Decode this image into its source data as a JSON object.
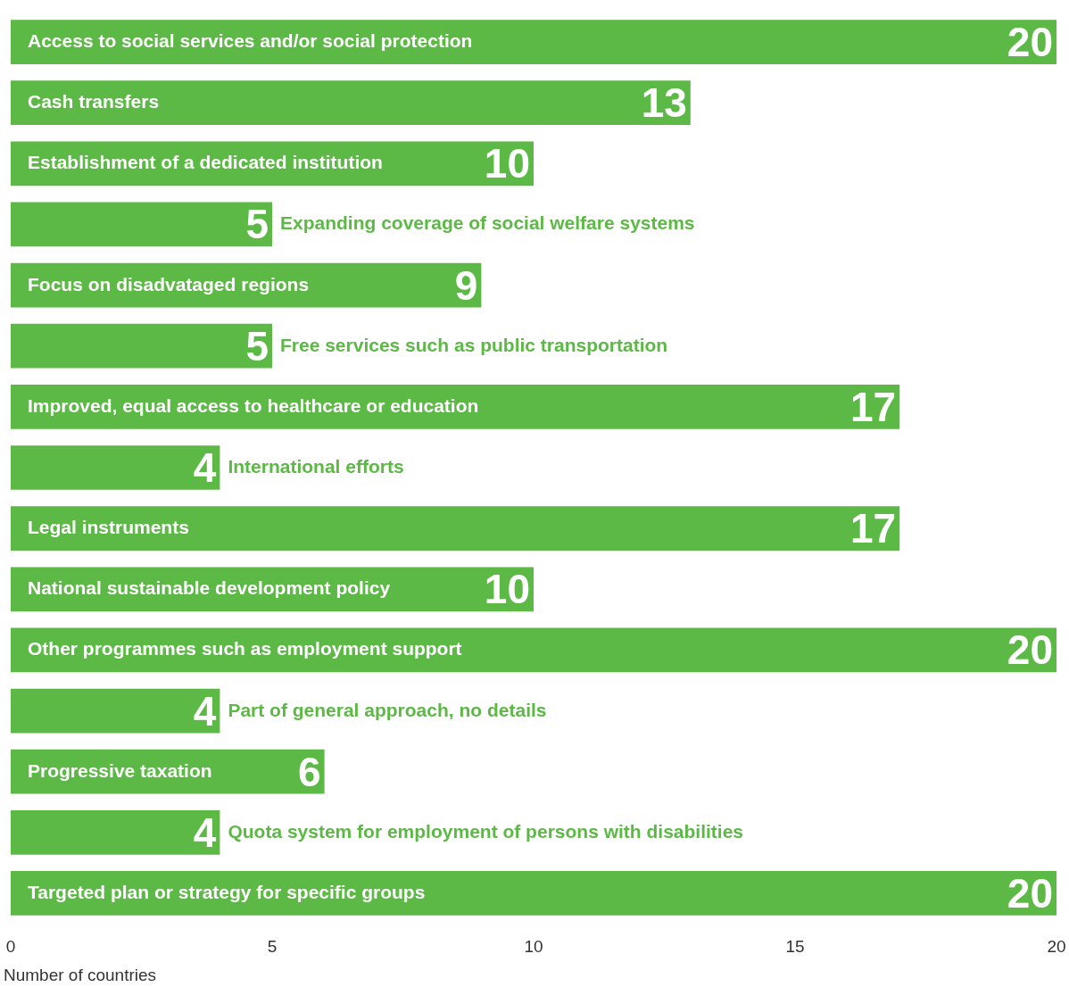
{
  "chart_data": {
    "type": "bar",
    "orientation": "horizontal",
    "xlabel": "Number of countries",
    "categories": [
      "Access to social services and/or social protection",
      "Cash transfers",
      "Establishment of a dedicated institution",
      "Expanding coverage of social welfare systems",
      "Focus on disadvataged regions",
      "Free services such as public transportation",
      "Improved, equal access to healthcare or education",
      "International efforts",
      "Legal instruments",
      "National sustainable development policy",
      "Other programmes such as employment support",
      "Part of general approach, no details",
      "Progressive taxation",
      "Quota system for employment of persons with disabilities",
      "Targeted plan or strategy for specific groups"
    ],
    "values": [
      20,
      13,
      10,
      5,
      9,
      5,
      17,
      4,
      17,
      10,
      20,
      4,
      6,
      4,
      20
    ],
    "color": "#5cb946",
    "xlim": [
      0,
      20
    ],
    "xticks": [
      0,
      5,
      10,
      15,
      20
    ],
    "grid": false,
    "data_labels": true
  }
}
